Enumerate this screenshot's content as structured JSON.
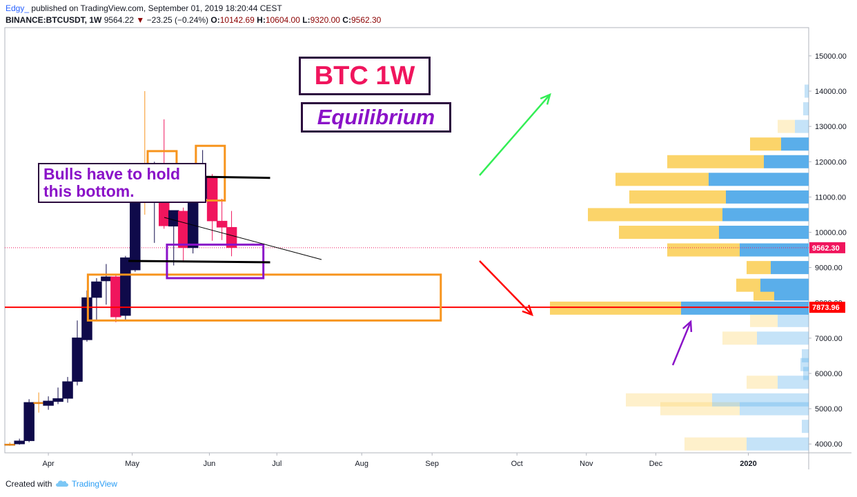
{
  "header": {
    "author": "Edgy_",
    "published": "published on TradingView.com, September 01, 2019 18:20:44 CEST",
    "symbol": "BINANCE:BTCUSDT, 1W",
    "last": "9564.22",
    "arrow": "▼",
    "change": "−23.25 (−0.24%)",
    "o_label": "O:",
    "o_value": "10142.69",
    "h_label": "H:",
    "h_value": "10604.00",
    "l_label": "L:",
    "l_value": "9320.00",
    "c_label": "C:",
    "c_value": "9562.30"
  },
  "footer": {
    "created": "Created with",
    "brand": "TradingView",
    "brand_icon": "tradingview-cloud-icon"
  },
  "annotations": {
    "title": "BTC 1W",
    "subtitle": "Equilibrium",
    "note": "Bulls have to hold this bottom."
  },
  "chart_data": {
    "type": "candlestick",
    "timeframe": "1W",
    "ylim": [
      3750,
      15800
    ],
    "y_ticks": [
      4000,
      5000,
      6000,
      7000,
      8000,
      9000,
      10000,
      11000,
      12000,
      13000,
      14000,
      15000
    ],
    "y_tick_labels": [
      "4000.00",
      "5000.00",
      "6000.00",
      "7000.00",
      "8000.00",
      "9000.00",
      "10000.00",
      "11000.00",
      "12000.00",
      "13000.00",
      "14000.00",
      "15000.00"
    ],
    "x_labels": [
      "Apr",
      "May",
      "Jun",
      "Jul",
      "Aug",
      "Sep",
      "Oct",
      "Nov",
      "Dec",
      "2020"
    ],
    "x_label_weeks": [
      4.0,
      12.7,
      20.7,
      27.7,
      36.5,
      43.8,
      52.6,
      59.8,
      67.0,
      76.6
    ],
    "xlim": [
      -0.3,
      82
    ],
    "candles": [
      {
        "w": 0,
        "o": 3990,
        "h": 4050,
        "l": 3950,
        "c": 4000
      },
      {
        "w": 1,
        "o": 4000,
        "h": 4150,
        "l": 3980,
        "c": 4090
      },
      {
        "w": 2,
        "o": 4090,
        "h": 5270,
        "l": 4050,
        "c": 5180
      },
      {
        "w": 3,
        "o": 5180,
        "h": 5460,
        "l": 4890,
        "c": 5180
      },
      {
        "w": 4,
        "o": 5090,
        "h": 5350,
        "l": 4970,
        "c": 5220
      },
      {
        "w": 5,
        "o": 5200,
        "h": 5600,
        "l": 5130,
        "c": 5290
      },
      {
        "w": 6,
        "o": 5290,
        "h": 5900,
        "l": 5170,
        "c": 5770
      },
      {
        "w": 7,
        "o": 5770,
        "h": 7500,
        "l": 5660,
        "c": 7010
      },
      {
        "w": 8,
        "o": 6950,
        "h": 8350,
        "l": 6900,
        "c": 8150
      },
      {
        "w": 9,
        "o": 8150,
        "h": 8700,
        "l": 7480,
        "c": 8600
      },
      {
        "w": 10,
        "o": 8620,
        "h": 9100,
        "l": 7950,
        "c": 8740
      },
      {
        "w": 11,
        "o": 8740,
        "h": 8780,
        "l": 7450,
        "c": 7600
      },
      {
        "w": 12,
        "o": 7640,
        "h": 9330,
        "l": 7480,
        "c": 9280
      },
      {
        "w": 13,
        "o": 8930,
        "h": 11400,
        "l": 8880,
        "c": 10950
      },
      {
        "w": 14,
        "o": 10920,
        "h": 14000,
        "l": 10500,
        "c": 10890
      },
      {
        "w": 15,
        "o": 10860,
        "h": 12000,
        "l": 9700,
        "c": 11420
      },
      {
        "w": 16,
        "o": 11420,
        "h": 13200,
        "l": 10100,
        "c": 10180
      },
      {
        "w": 17,
        "o": 10170,
        "h": 10600,
        "l": 9060,
        "c": 10620
      },
      {
        "w": 18,
        "o": 10600,
        "h": 10700,
        "l": 9200,
        "c": 9560
      },
      {
        "w": 19,
        "o": 9560,
        "h": 11000,
        "l": 9400,
        "c": 10950
      },
      {
        "w": 20,
        "o": 10950,
        "h": 12330,
        "l": 10900,
        "c": 11580
      },
      {
        "w": 21,
        "o": 11580,
        "h": 11650,
        "l": 9760,
        "c": 10320
      },
      {
        "w": 22,
        "o": 10320,
        "h": 10950,
        "l": 9780,
        "c": 10140
      },
      {
        "w": 23,
        "o": 10142.69,
        "h": 10604,
        "l": 9320,
        "c": 9562.3
      }
    ],
    "price_labels": [
      {
        "value": 9562.3,
        "text": "9562.30",
        "color": "#f0155d"
      },
      {
        "value": 7873.96,
        "text": "7873.96",
        "color": "#ff0000"
      }
    ],
    "volume_profile": [
      {
        "price": 4000,
        "up": 90,
        "down": 90,
        "faded": true
      },
      {
        "price": 4500,
        "up": 0,
        "down": 10,
        "faded": true
      },
      {
        "price": 5000,
        "up": 115,
        "down": 100,
        "faded": true
      },
      {
        "price": 5250,
        "up": 125,
        "down": 140,
        "faded": true
      },
      {
        "price": 5750,
        "up": 45,
        "down": 45,
        "faded": true
      },
      {
        "price": 6000,
        "up": 0,
        "down": 8,
        "faded": true
      },
      {
        "price": 6250,
        "up": 0,
        "down": 12,
        "faded": true
      },
      {
        "price": 6500,
        "up": 0,
        "down": 10,
        "faded": true
      },
      {
        "price": 7000,
        "up": 50,
        "down": 75,
        "faded": true
      },
      {
        "price": 7500,
        "up": 40,
        "down": 45,
        "faded": true
      },
      {
        "price": 7850,
        "up": 190,
        "down": 185,
        "faded": false
      },
      {
        "price": 8250,
        "up": 30,
        "down": 50,
        "faded": false
      },
      {
        "price": 8500,
        "up": 35,
        "down": 70,
        "faded": false
      },
      {
        "price": 9000,
        "up": 35,
        "down": 55,
        "faded": false
      },
      {
        "price": 9500,
        "up": 105,
        "down": 100,
        "faded": false
      },
      {
        "price": 10000,
        "up": 145,
        "down": 130,
        "faded": false
      },
      {
        "price": 10500,
        "up": 195,
        "down": 125,
        "faded": false
      },
      {
        "price": 11000,
        "up": 140,
        "down": 120,
        "faded": false
      },
      {
        "price": 11500,
        "up": 135,
        "down": 145,
        "faded": false
      },
      {
        "price": 12000,
        "up": 140,
        "down": 65,
        "faded": false
      },
      {
        "price": 12500,
        "up": 45,
        "down": 40,
        "faded": false
      },
      {
        "price": 13000,
        "up": 25,
        "down": 20,
        "faded": true
      },
      {
        "price": 13500,
        "up": 0,
        "down": 8,
        "faded": true
      },
      {
        "price": 14000,
        "up": 0,
        "down": 6,
        "faded": true
      }
    ],
    "drawings": {
      "resistance_line": {
        "w1": 13.3,
        "w2": 27,
        "value": 11600
      },
      "support_line": {
        "w1": 12.3,
        "w2": 27,
        "value": 9150
      },
      "horizontal_red": {
        "value": 7873.96
      },
      "orange_boxes": [
        {
          "w1": 14.3,
          "w2": 17.3,
          "top": 12300,
          "bottom": 11000
        },
        {
          "w1": 19.3,
          "w2": 22.3,
          "top": 12450,
          "bottom": 10900
        }
      ],
      "zone_box": {
        "w1": 8.1,
        "w2": 44.7,
        "top": 8800,
        "bottom": 7500
      },
      "purple_box": {
        "w1": 16.3,
        "w2": 26.3,
        "top": 9650,
        "bottom": 8700
      }
    },
    "colors": {
      "bull": "#0f0a4a",
      "bear": "#f0155d",
      "neutral": "#f7941d",
      "resistance": "#000000",
      "zone": "#f7941d",
      "purple": "#8a12c8",
      "green_arrow": "#33ee55",
      "red": "#ff0000",
      "vp_up": "#fbd46a",
      "vp_down": "#5aaeea"
    }
  }
}
